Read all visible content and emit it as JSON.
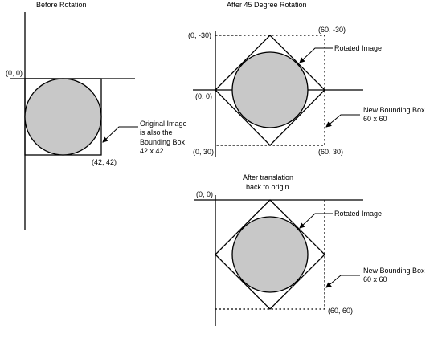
{
  "panels": {
    "before": {
      "title": "Before Rotation",
      "origin_label": "(0, 0)",
      "corner_label": "(42, 42)",
      "note": [
        "Original Image",
        "is also the",
        "Bounding Box",
        "42 x 42"
      ]
    },
    "rotated": {
      "title": "After 45 Degree Rotation",
      "labels": {
        "top_left": "(0, -30)",
        "top_right": "(60, -30)",
        "origin": "(0, 0)",
        "bottom_left": "(0, 30)",
        "bottom_right": "(60, 30)"
      },
      "rotated_image": "Rotated Image",
      "bbox_note": [
        "New Bounding Box",
        "60 x 60"
      ]
    },
    "translated": {
      "title": [
        "After translation",
        "back to origin"
      ],
      "origin_label": "(0, 0)",
      "corner_label": "(60, 60)",
      "rotated_image": "Rotated Image",
      "bbox_note": [
        "New Bounding Box",
        "60 x 60"
      ]
    }
  }
}
